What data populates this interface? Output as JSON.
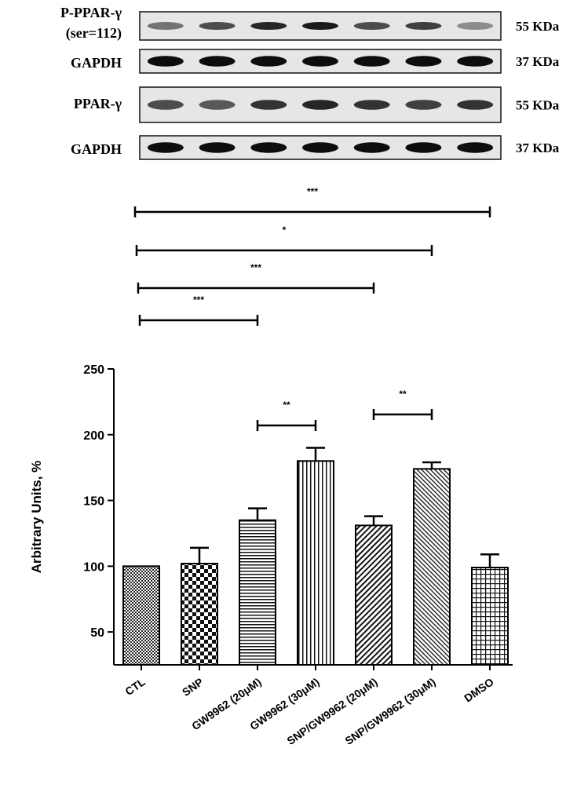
{
  "blots": [
    {
      "label_lines": [
        "P-PPAR-γ",
        "(ser=112)"
      ],
      "kda": "55 KDa",
      "intensities": [
        0.55,
        0.7,
        0.85,
        0.9,
        0.7,
        0.75,
        0.45
      ]
    },
    {
      "label_lines": [
        "GAPDH"
      ],
      "kda": "37 KDa",
      "intensities": [
        0.95,
        0.95,
        0.95,
        0.95,
        0.95,
        0.95,
        0.95
      ]
    },
    {
      "label_lines": [
        "PPAR-γ"
      ],
      "kda": "55 KDa",
      "intensities": [
        0.7,
        0.65,
        0.8,
        0.85,
        0.8,
        0.75,
        0.8
      ]
    },
    {
      "label_lines": [
        "GAPDH"
      ],
      "kda": "37 KDa",
      "intensities": [
        0.95,
        0.95,
        0.95,
        0.95,
        0.95,
        0.95,
        0.95
      ]
    }
  ],
  "chart_data": {
    "type": "bar",
    "categories": [
      "CTL",
      "SNP",
      "GW9962 (20μM)",
      "GW9962 (30μM)",
      "SNP/GW9962 (20μM)",
      "SNP/GW9962 (30μM)",
      "DMSO"
    ],
    "values": [
      100,
      102,
      135,
      180,
      131,
      174,
      99
    ],
    "errors": [
      0,
      12,
      9,
      10,
      7,
      5,
      10
    ],
    "patterns": [
      "fine-check",
      "checker",
      "horizontal-lines",
      "vertical-lines",
      "diagonal-dense",
      "diagonal-fine",
      "grid"
    ],
    "ylabel": "Arbitrary Units, %",
    "yticks": [
      50,
      100,
      150,
      200,
      250
    ],
    "ylim": [
      25,
      250
    ],
    "significance": [
      {
        "from": 0,
        "to": 6,
        "label": "***"
      },
      {
        "from": 0,
        "to": 5,
        "label": "*"
      },
      {
        "from": 0,
        "to": 4,
        "label": "***"
      },
      {
        "from": 0,
        "to": 2,
        "label": "***"
      },
      {
        "from": 2,
        "to": 3,
        "label": "**"
      },
      {
        "from": 4,
        "to": 5,
        "label": "**"
      }
    ]
  }
}
